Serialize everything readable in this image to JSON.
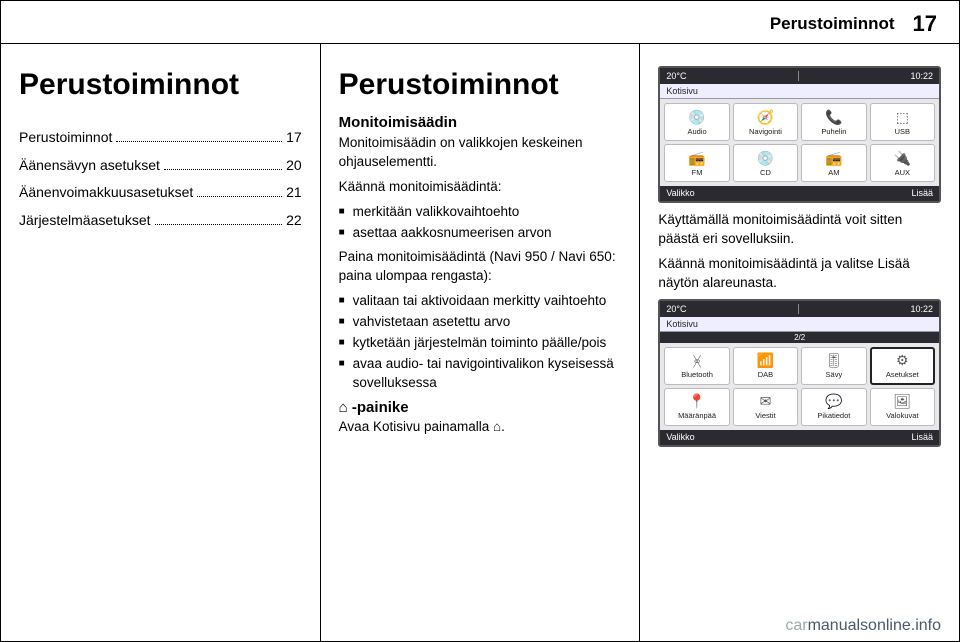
{
  "header": {
    "section": "Perustoiminnot",
    "page": "17"
  },
  "col1": {
    "heading": "Perustoiminnot",
    "toc": [
      {
        "title": "Perustoiminnot",
        "page": "17"
      },
      {
        "title": "Äänensävyn asetukset",
        "page": "20"
      },
      {
        "title": "Äänenvoimakkuusasetukset",
        "page": "21"
      },
      {
        "title": "Järjestelmäasetukset",
        "page": "22"
      }
    ]
  },
  "col2": {
    "heading": "Perustoiminnot",
    "sub1": "Monitoimisäädin",
    "p1": "Monitoimisäädin on valikkojen keskeinen ohjauselementti.",
    "p2": "Käännä monitoimisäädintä:",
    "list1": [
      "merkitään valikkovaihtoehto",
      "asettaa aakkosnumeerisen arvon"
    ],
    "p3": "Paina monitoimisäädintä (Navi 950 / Navi 650: paina ulompaa rengasta):",
    "list2": [
      "valitaan tai aktivoidaan merkitty vaihtoehto",
      "vahvistetaan asetettu arvo",
      "kytketään järjestelmän toiminto päälle/pois",
      "avaa audio- tai navigointivalikon kyseisessä sovelluksessa"
    ],
    "homeBtnTitle": "⌂ -painike",
    "p4": "Avaa Kotisivu painamalla ⌂."
  },
  "col3": {
    "screenshot1": {
      "temp": "20°C",
      "time": "10:22",
      "title": "Kotisivu",
      "grid": [
        {
          "glyph": "💿",
          "label": "Audio"
        },
        {
          "glyph": "🧭",
          "label": "Navigointi"
        },
        {
          "glyph": "📞",
          "label": "Puhelin"
        },
        {
          "glyph": "⬚",
          "label": "USB"
        },
        {
          "glyph": "📻",
          "label": "FM"
        },
        {
          "glyph": "💿",
          "label": "CD"
        },
        {
          "glyph": "📻",
          "label": "AM"
        },
        {
          "glyph": "🔌",
          "label": "AUX"
        }
      ],
      "bottomLeft": "Valikko",
      "bottomRight": "Lisää"
    },
    "p1": "Käyttämällä monitoimisäädintä voit sitten päästä eri sovelluksiin.",
    "p2": "Käännä monitoimisäädintä ja valitse Lisää näytön alareunasta.",
    "screenshot2": {
      "temp": "20°C",
      "time": "10:22",
      "title": "Kotisivu",
      "pager": "2/2",
      "grid": [
        {
          "glyph": "ᚸ",
          "label": "Bluetooth"
        },
        {
          "glyph": "📶",
          "label": "DAB"
        },
        {
          "glyph": "🎚",
          "label": "Sävy"
        },
        {
          "glyph": "⚙",
          "label": "Asetukset",
          "active": true
        },
        {
          "glyph": "📍",
          "label": "Määränpää"
        },
        {
          "glyph": "✉",
          "label": "Viestit"
        },
        {
          "glyph": "💬",
          "label": "Pikatiedot"
        },
        {
          "glyph": "🖼",
          "label": "Valokuvat"
        }
      ],
      "bottomLeft": "Valikko",
      "bottomRight": "Lisää"
    }
  },
  "footer": {
    "grey": "car",
    "rest": "manualsonline.info"
  }
}
